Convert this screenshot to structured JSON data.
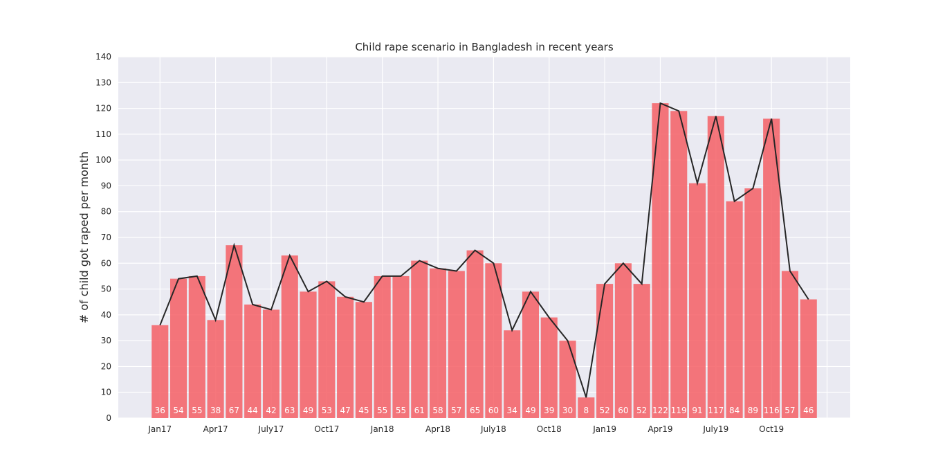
{
  "chart_data": {
    "type": "bar",
    "title": "Child rape scenario in Bangladesh in recent years",
    "xlabel": "",
    "ylabel": "# of child got raped per month",
    "ylim": [
      0,
      140
    ],
    "yticks": [
      0,
      10,
      20,
      30,
      40,
      50,
      60,
      70,
      80,
      90,
      100,
      110,
      120,
      130,
      140
    ],
    "xtick_labels": [
      "Jan17",
      "Apr17",
      "July17",
      "Oct17",
      "Jan18",
      "Apr18",
      "July18",
      "Oct18",
      "Jan19",
      "Apr19",
      "July19",
      "Oct19"
    ],
    "xtick_interval": 3,
    "values": [
      36,
      54,
      55,
      38,
      67,
      44,
      42,
      63,
      49,
      53,
      47,
      45,
      55,
      55,
      61,
      58,
      57,
      65,
      60,
      34,
      49,
      39,
      30,
      8,
      52,
      60,
      52,
      122,
      119,
      91,
      117,
      84,
      89,
      116,
      57,
      46
    ],
    "overlay_line": true,
    "data_labels": true,
    "grid": true,
    "colors": {
      "bar": "#f55f65",
      "line": "#262626",
      "background": "#eaeaf2",
      "grid": "#ffffff",
      "data_label": "#ffffff"
    }
  }
}
